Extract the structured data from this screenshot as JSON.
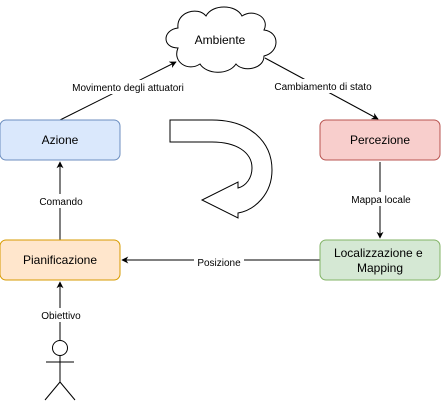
{
  "nodes": {
    "ambiente": {
      "label": "Ambiente",
      "shape": "cloud",
      "fill": "#ffffff",
      "stroke": "#000000"
    },
    "azione": {
      "label": "Azione",
      "fill": "#dae8fc",
      "stroke": "#6c8ebf"
    },
    "percezione": {
      "label": "Percezione",
      "fill": "#f8cecc",
      "stroke": "#b85450"
    },
    "localizzazione": {
      "label_line1": "Localizzazione e",
      "label_line2": "Mapping",
      "fill": "#d5e8d4",
      "stroke": "#82b366"
    },
    "pianificazione": {
      "label": "Pianificazione",
      "fill": "#ffe6cc",
      "stroke": "#d79b00"
    },
    "attore": {
      "shape": "stick-figure",
      "stroke": "#000000"
    },
    "ciclo": {
      "shape": "curved-arrow-clockwise",
      "fill": "#ffffff",
      "stroke": "#000000"
    }
  },
  "edges": {
    "movimento": {
      "label": "Movimento degli attuatori",
      "from": "Azione",
      "to": "Ambiente"
    },
    "cambiamento": {
      "label": "Cambiamento di stato",
      "from": "Ambiente",
      "to": "Percezione"
    },
    "mappa": {
      "label": "Mappa locale",
      "from": "Percezione",
      "to": "Localizzazione e Mapping"
    },
    "posizione": {
      "label": "Posizione",
      "from": "Localizzazione e Mapping",
      "to": "Pianificazione"
    },
    "comando": {
      "label": "Comando",
      "from": "Pianificazione",
      "to": "Azione"
    },
    "obiettivo": {
      "label": "Obiettivo",
      "from": "attore",
      "to": "Pianificazione"
    }
  }
}
